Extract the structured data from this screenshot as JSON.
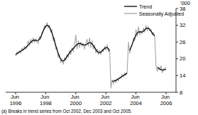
{
  "chart_data": {
    "type": "line",
    "y_label": "'000",
    "footnote": "(a) Breaks in trend series from Oct 2002, Dec 2003 and Oct 2005.",
    "categories": [
      "Jun 1996",
      null,
      null,
      null,
      null,
      null,
      null,
      null,
      null,
      null,
      null,
      null,
      null,
      null,
      null,
      null,
      null,
      null,
      null,
      null,
      null,
      null,
      null,
      null,
      "Jun 1998",
      null,
      null,
      null,
      null,
      null,
      null,
      null,
      null,
      null,
      null,
      null,
      null,
      null,
      null,
      null,
      null,
      null,
      null,
      null,
      null,
      null,
      null,
      null,
      "Jun 2000",
      null,
      null,
      null,
      null,
      null,
      null,
      null,
      null,
      null,
      null,
      null,
      null,
      null,
      null,
      null,
      null,
      null,
      null,
      null,
      null,
      null,
      null,
      null,
      "Jun 2002",
      null,
      null,
      null,
      null,
      null,
      null,
      null,
      null,
      null,
      null,
      null,
      null,
      null,
      null,
      null,
      null,
      null,
      null,
      null,
      null,
      null,
      null,
      null,
      "Jun 2004",
      null,
      null,
      null,
      null,
      null,
      null,
      null,
      null,
      null,
      null,
      null,
      null,
      null,
      null,
      null,
      null,
      null,
      null,
      null,
      null,
      null,
      null,
      null,
      "Jun 2006"
    ],
    "series": [
      {
        "name": "Trend",
        "color": "#000000",
        "values": [
          21.5,
          21.8,
          22.1,
          22.4,
          22.7,
          23.0,
          23.3,
          23.6,
          24.0,
          24.4,
          24.9,
          25.4,
          25.9,
          26.3,
          26.6,
          26.7,
          26.6,
          26.5,
          26.6,
          27.0,
          27.8,
          28.8,
          29.9,
          30.9,
          31.6,
          32.0,
          31.9,
          31.3,
          30.4,
          29.2,
          27.8,
          26.3,
          24.8,
          23.3,
          21.9,
          20.7,
          19.8,
          19.3,
          19.2,
          19.5,
          20.1,
          20.8,
          21.5,
          22.1,
          22.7,
          23.2,
          23.7,
          24.2,
          24.7,
          25.1,
          25.4,
          25.5,
          25.4,
          25.2,
          25.0,
          24.9,
          25.0,
          25.3,
          25.6,
          25.8,
          25.7,
          25.3,
          24.7,
          24.0,
          23.3,
          22.7,
          22.3,
          22.2,
          22.4,
          22.8,
          23.3,
          23.7,
          24.0,
          24.0,
          23.6,
          22.9,
          null,
          12.0,
          12.0,
          12.1,
          12.3,
          12.5,
          12.8,
          13.1,
          13.4,
          13.7,
          14.0,
          14.3,
          14.6,
          14.9,
          null,
          23.0,
          24.0,
          25.2,
          26.4,
          27.5,
          28.5,
          29.2,
          29.6,
          29.7,
          29.6,
          29.6,
          29.9,
          30.4,
          30.8,
          31.0,
          30.9,
          30.5,
          29.9,
          29.2,
          28.6,
          28.2,
          null,
          17.0,
          16.6,
          16.3,
          16.1,
          16.0,
          16.0,
          16.1,
          16.2
        ]
      },
      {
        "name": "Seasonally Adjusted",
        "color": "#a6a6a6",
        "values": [
          21.0,
          22.5,
          21.8,
          23.0,
          22.0,
          23.8,
          22.9,
          24.5,
          23.5,
          24.0,
          26.5,
          24.8,
          27.0,
          25.5,
          27.5,
          25.8,
          27.2,
          26.0,
          25.5,
          28.0,
          27.0,
          29.5,
          30.0,
          32.0,
          31.0,
          33.0,
          31.0,
          32.0,
          29.5,
          30.5,
          26.5,
          27.5,
          23.5,
          24.0,
          20.5,
          21.5,
          18.5,
          20.0,
          18.0,
          20.5,
          19.5,
          21.5,
          20.5,
          23.0,
          21.5,
          24.0,
          22.5,
          25.0,
          28.5,
          23.5,
          26.5,
          24.0,
          26.0,
          24.5,
          25.5,
          23.5,
          25.5,
          27.0,
          24.5,
          27.5,
          24.0,
          26.5,
          23.5,
          25.0,
          22.0,
          23.5,
          21.5,
          23.0,
          21.5,
          23.5,
          22.5,
          24.5,
          23.0,
          25.0,
          22.5,
          23.0,
          9.5,
          12.5,
          11.0,
          12.5,
          11.5,
          13.0,
          12.0,
          13.5,
          13.0,
          14.5,
          13.5,
          15.0,
          14.0,
          15.5,
          26.0,
          22.0,
          24.5,
          25.0,
          27.5,
          26.5,
          30.5,
          28.0,
          31.5,
          28.5,
          30.0,
          29.0,
          31.0,
          29.5,
          32.0,
          30.0,
          31.5,
          30.0,
          30.5,
          28.5,
          29.5,
          27.5,
          17.5,
          15.5,
          17.0,
          16.0,
          17.5,
          15.0,
          16.5,
          16.0,
          17.0
        ]
      }
    ],
    "ylim": [
      8,
      38
    ],
    "yticks": [
      8,
      14,
      20,
      26,
      32,
      38
    ],
    "grid": false,
    "legend": "upper right"
  }
}
